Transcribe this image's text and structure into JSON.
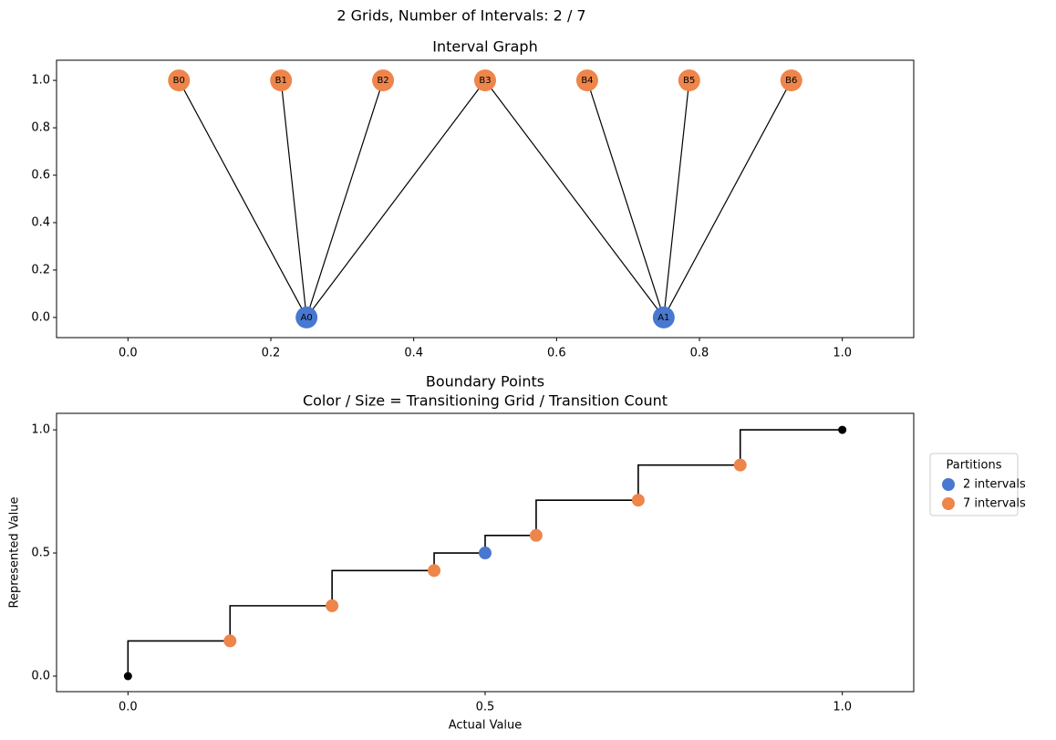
{
  "title": "2 Grids, Number of Intervals: 2 / 7",
  "chart_data": [
    {
      "type": "graph",
      "title": "Interval Graph",
      "xlim": [
        -0.1,
        1.1
      ],
      "ylim": [
        -0.085,
        1.085
      ],
      "xticks": [
        {
          "value": 0,
          "label": "0.0"
        },
        0.2,
        0.4,
        0.6,
        0.8,
        {
          "value": 1,
          "label": "1.0"
        }
      ],
      "yticks": [
        {
          "value": 0,
          "label": "0.0"
        },
        0.2,
        0.4,
        0.6,
        0.8,
        {
          "value": 1,
          "label": "1.0"
        }
      ],
      "edge_color": "#000000",
      "nodes": [
        {
          "label": "B0",
          "x": 0.0714,
          "y": 1,
          "color": "#ee854a"
        },
        {
          "label": "B1",
          "x": 0.2143,
          "y": 1,
          "color": "#ee854a"
        },
        {
          "label": "B2",
          "x": 0.3571,
          "y": 1,
          "color": "#ee854a"
        },
        {
          "label": "B3",
          "x": 0.5,
          "y": 1,
          "color": "#ee854a"
        },
        {
          "label": "B4",
          "x": 0.6429,
          "y": 1,
          "color": "#ee854a"
        },
        {
          "label": "B5",
          "x": 0.7857,
          "y": 1,
          "color": "#ee854a"
        },
        {
          "label": "B6",
          "x": 0.9286,
          "y": 1,
          "color": "#ee854a"
        },
        {
          "label": "A0",
          "x": 0.25,
          "y": 0,
          "color": "#4878cf"
        },
        {
          "label": "A1",
          "x": 0.75,
          "y": 0,
          "color": "#4878cf"
        }
      ],
      "edges": [
        {
          "source": "B0",
          "target": "A0"
        },
        {
          "source": "B1",
          "target": "A0"
        },
        {
          "source": "B2",
          "target": "A0"
        },
        {
          "source": "B3",
          "target": "A0"
        },
        {
          "source": "B3",
          "target": "A1"
        },
        {
          "source": "B4",
          "target": "A1"
        },
        {
          "source": "B5",
          "target": "A1"
        },
        {
          "source": "B6",
          "target": "A1"
        }
      ]
    },
    {
      "type": "scatter",
      "title": "Boundary Points",
      "subtitle": "Color / Size = Transitioning Grid / Transition Count",
      "xlabel": "Actual Value",
      "ylabel": "Represented Value",
      "xlim": [
        -0.1,
        1.1
      ],
      "ylim": [
        -0.063,
        1.067
      ],
      "xticks": [
        {
          "value": 0,
          "label": "0.0"
        },
        0.5,
        {
          "value": 1,
          "label": "1.0"
        }
      ],
      "yticks": [
        {
          "value": 0,
          "label": "0.0"
        },
        0.5,
        {
          "value": 1,
          "label": "1.0"
        }
      ],
      "legend_title": "Partitions",
      "legend_position": "right",
      "step_line": {
        "color": "#000000",
        "x": [
          0,
          0.1429,
          0.2857,
          0.4286,
          0.5,
          0.5714,
          0.7143,
          0.8571,
          1
        ],
        "y": [
          0,
          0.1429,
          0.2857,
          0.4286,
          0.5,
          0.5714,
          0.7143,
          0.8571,
          1
        ]
      },
      "endpoints": {
        "color": "#000000",
        "x": [
          0,
          1
        ],
        "y": [
          0,
          1
        ]
      },
      "series": [
        {
          "name": "2 intervals",
          "color": "#4878cf",
          "x": [
            0.5
          ],
          "y": [
            0.5
          ]
        },
        {
          "name": "7 intervals",
          "color": "#ee854a",
          "x": [
            0.1429,
            0.2857,
            0.4286,
            0.5714,
            0.7143,
            0.8571
          ],
          "y": [
            0.1429,
            0.2857,
            0.4286,
            0.5714,
            0.7143,
            0.8571
          ]
        }
      ]
    }
  ]
}
